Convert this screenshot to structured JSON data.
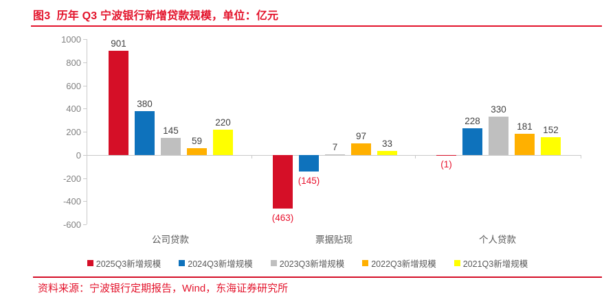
{
  "title": "图3  历年 Q3 宁波银行新增贷款规模，单位：亿元",
  "source": "资料来源：宁波银行定期报告，Wind，东海证券研究所",
  "accent_color": "#e3132b",
  "chart_data": {
    "type": "bar",
    "title": "历年 Q3 宁波银行新增贷款规模",
    "unit": "亿元",
    "categories": [
      "公司贷款",
      "票据贴现",
      "个人贷款"
    ],
    "series": [
      {
        "name": "2025Q3新增规模",
        "color": "#d50f27",
        "values": [
          901,
          -463,
          -1
        ]
      },
      {
        "name": "2024Q3新增规模",
        "color": "#0e72bc",
        "values": [
          380,
          -145,
          228
        ]
      },
      {
        "name": "2023Q3新增规模",
        "color": "#bfbfbf",
        "values": [
          145,
          7,
          330
        ]
      },
      {
        "name": "2022Q3新增规模",
        "color": "#ffb000",
        "values": [
          59,
          97,
          181
        ]
      },
      {
        "name": "2021Q3新增规模",
        "color": "#ffff00",
        "values": [
          220,
          33,
          152
        ]
      }
    ],
    "ylim": [
      -600,
      1000
    ],
    "ytick_labels": [
      "1000",
      "800",
      "600",
      "400",
      "200",
      "0",
      "-200",
      "-400",
      "-600"
    ],
    "negative_label_style": "red-parentheses",
    "grid": false,
    "legend_position": "bottom",
    "xlabel": "",
    "ylabel": ""
  }
}
